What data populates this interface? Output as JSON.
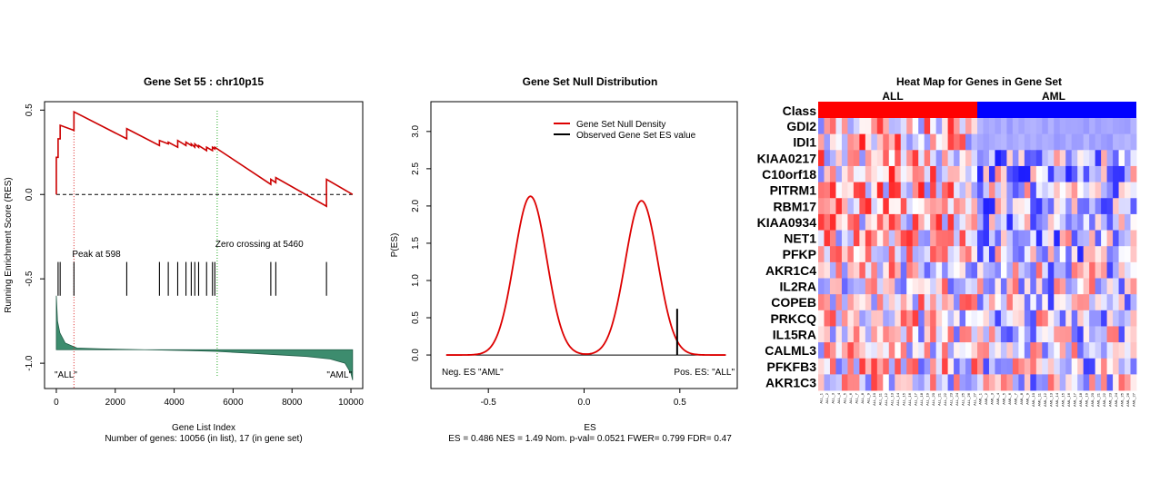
{
  "colors": {
    "es_line": "#cc0000",
    "peak_line": "#dd2222",
    "zero_cross_line": "#22aa22",
    "metric_fill": "#3d8c6e",
    "null_density": "#dd0000",
    "class_all": "#ff0000",
    "class_aml": "#0000ff"
  },
  "chart_data": [
    {
      "type": "line",
      "title": "Gene Set  55 : chr10p15",
      "xlabel": "Gene List Index",
      "subtitle": "Number of genes: 10056 (in list), 17 (in gene set)",
      "ylabel": "Running Enrichment Score (RES)",
      "xlim": [
        -400,
        10400
      ],
      "ylim": [
        -1.15,
        0.55
      ],
      "x_ticks": [
        0,
        2000,
        4000,
        6000,
        8000,
        10000
      ],
      "y_ticks": [
        0.5,
        0.0,
        -0.5,
        -1.0
      ],
      "y_tick_labels": [
        "0.5",
        "0.0",
        "-0.5",
        "-1.0"
      ],
      "peak_label": "Peak at 598",
      "peak_x": 598,
      "zero_cross_label": "Zero crossing at 5460",
      "zero_cross_x": 5460,
      "label_left": "\"ALL\"",
      "label_right": "\"AML\"",
      "hits": [
        60,
        130,
        598,
        2390,
        3500,
        3800,
        4120,
        4400,
        4580,
        4700,
        4830,
        5100,
        5300,
        5380,
        7280,
        7450,
        9170
      ],
      "running_es": [
        [
          0,
          0.0
        ],
        [
          0,
          0.22
        ],
        [
          60,
          0.22
        ],
        [
          60,
          0.33
        ],
        [
          130,
          0.33
        ],
        [
          130,
          0.41
        ],
        [
          598,
          0.38
        ],
        [
          598,
          0.49
        ],
        [
          2390,
          0.33
        ],
        [
          2390,
          0.39
        ],
        [
          3500,
          0.29
        ],
        [
          3500,
          0.32
        ],
        [
          3800,
          0.3
        ],
        [
          3800,
          0.31
        ],
        [
          4120,
          0.28
        ],
        [
          4120,
          0.32
        ],
        [
          4400,
          0.29
        ],
        [
          4400,
          0.31
        ],
        [
          4580,
          0.29
        ],
        [
          4580,
          0.3
        ],
        [
          4700,
          0.28
        ],
        [
          4700,
          0.3
        ],
        [
          4830,
          0.28
        ],
        [
          4830,
          0.29
        ],
        [
          5100,
          0.26
        ],
        [
          5100,
          0.28
        ],
        [
          5300,
          0.26
        ],
        [
          5300,
          0.28
        ],
        [
          5380,
          0.27
        ],
        [
          5380,
          0.28
        ],
        [
          7280,
          0.06
        ],
        [
          7280,
          0.09
        ],
        [
          7450,
          0.07
        ],
        [
          7450,
          0.1
        ],
        [
          9170,
          -0.07
        ],
        [
          9170,
          0.09
        ],
        [
          10056,
          0.0
        ]
      ],
      "metric_curve": [
        [
          0,
          -0.6
        ],
        [
          40,
          -0.75
        ],
        [
          120,
          -0.82
        ],
        [
          300,
          -0.88
        ],
        [
          700,
          -0.91
        ],
        [
          1500,
          -0.915
        ],
        [
          3000,
          -0.92
        ],
        [
          4500,
          -0.925
        ],
        [
          5460,
          -0.93
        ],
        [
          6500,
          -0.94
        ],
        [
          7500,
          -0.95
        ],
        [
          8500,
          -0.96
        ],
        [
          9300,
          -0.975
        ],
        [
          9800,
          -1.0
        ],
        [
          10000,
          -1.06
        ],
        [
          10056,
          -1.1
        ]
      ]
    },
    {
      "type": "line",
      "title": "Gene Set Null Distribution",
      "xlabel": "ES",
      "subtitle": "ES = 0.486  NES = 1.49 Nom. p-val= 0.0521 FWER= 0.799 FDR= 0.47",
      "ylabel": "P(ES)",
      "xlim": [
        -0.8,
        0.8
      ],
      "ylim": [
        -0.45,
        3.4
      ],
      "x_ticks": [
        -0.5,
        0.0,
        0.5
      ],
      "x_tick_labels": [
        "-0.5",
        "0.0",
        "0.5"
      ],
      "y_ticks": [
        0.0,
        0.5,
        1.0,
        1.5,
        2.0,
        2.5,
        3.0
      ],
      "y_tick_labels": [
        "0.0",
        "0.5",
        "1.0",
        "1.5",
        "2.0",
        "2.5",
        "3.0"
      ],
      "legend": [
        "Gene Set Null Density",
        "Observed Gene Set ES value"
      ],
      "legend_position": "top-right",
      "observed_es": 0.486,
      "observed_height": 0.62,
      "label_left": "Neg. ES \"AML\"",
      "label_right": "Pos. ES: \"ALL\"",
      "density_modes": [
        {
          "mean": -0.28,
          "sd": 0.085,
          "height": 2.13
        },
        {
          "mean": 0.3,
          "sd": 0.085,
          "height": 2.07
        }
      ],
      "x_support": [
        -0.72,
        0.74
      ]
    },
    {
      "type": "heatmap",
      "title": "Heat Map for Genes in Gene Set",
      "class_row_label": "Class",
      "class_names": [
        "ALL",
        "AML"
      ],
      "n_all": 27,
      "n_aml": 27,
      "genes": [
        "GDI2",
        "IDI1",
        "KIAA0217",
        "C10orf18",
        "PITRM1",
        "RBM17",
        "KIAA0934",
        "NET1",
        "PFKP",
        "AKR1C4",
        "IL2RA",
        "COPEB",
        "PRKCQ",
        "IL15RA",
        "CALML3",
        "PFKFB3",
        "AKR1C3"
      ],
      "samples": [
        "ALL_1",
        "ALL_2",
        "ALL_3",
        "ALL_4",
        "ALL_5",
        "ALL_6",
        "ALL_7",
        "ALL_8",
        "ALL_9",
        "ALL_10",
        "ALL_11",
        "ALL_12",
        "ALL_13",
        "ALL_14",
        "ALL_15",
        "ALL_16",
        "ALL_17",
        "ALL_18",
        "ALL_19",
        "ALL_20",
        "ALL_21",
        "ALL_22",
        "ALL_23",
        "ALL_24",
        "ALL_25",
        "ALL_26",
        "ALL_27",
        "AML_1",
        "AML_2",
        "AML_3",
        "AML_4",
        "AML_5",
        "AML_6",
        "AML_7",
        "AML_8",
        "AML_9",
        "AML_10",
        "AML_11",
        "AML_12",
        "AML_13",
        "AML_14",
        "AML_15",
        "AML_16",
        "AML_17",
        "AML_18",
        "AML_19",
        "AML_20",
        "AML_21",
        "AML_22",
        "AML_23",
        "AML_24",
        "AML_25",
        "AML_26",
        "AML_27"
      ]
    }
  ]
}
